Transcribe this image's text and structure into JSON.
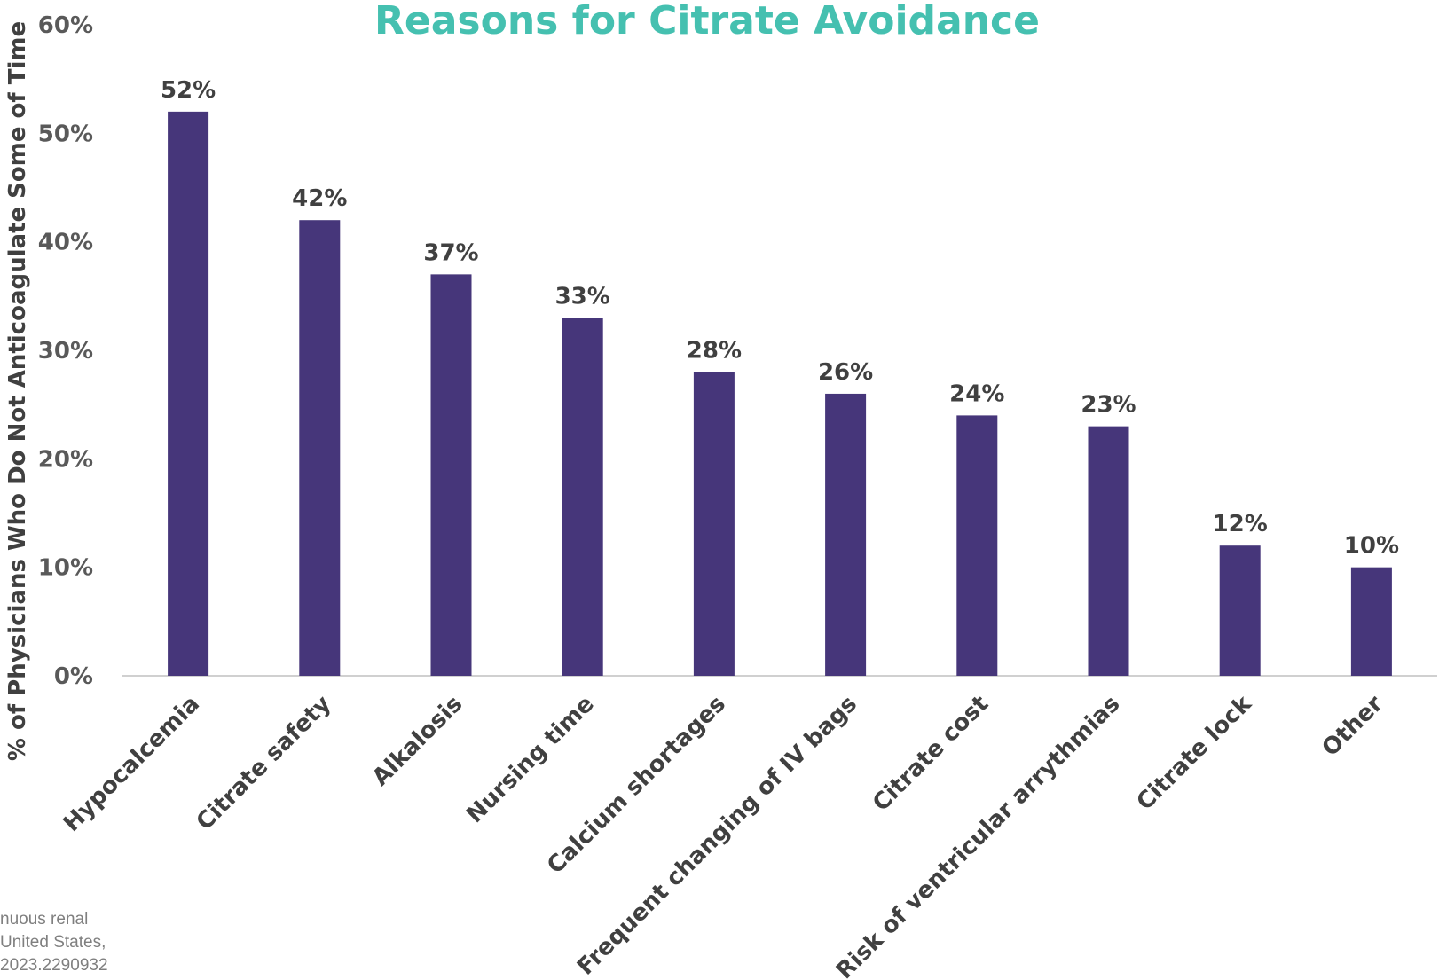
{
  "colors": {
    "bar": "#46367a",
    "title": "#45c0b0",
    "axis_line": "#d0d0d0"
  },
  "chart_data": {
    "type": "bar",
    "title": "Reasons for Citrate Avoidance",
    "ylabel": "% of Physicians Who Do Not Anticoagulate Some of Time",
    "xlabel": "",
    "ylim": [
      0,
      60
    ],
    "yticks": [
      "0%",
      "10%",
      "20%",
      "30%",
      "40%",
      "50%",
      "60%"
    ],
    "grid": false,
    "categories": [
      "Hypocalcemia",
      "Citrate safety",
      "Alkalosis",
      "Nursing time",
      "Calcium shortages",
      "Frequent changing of IV bags",
      "Citrate cost",
      "Risk of ventricular arrythmias",
      "Citrate lock",
      "Other"
    ],
    "values": [
      52,
      42,
      37,
      33,
      28,
      26,
      24,
      23,
      12,
      10
    ],
    "data_labels": [
      "52%",
      "42%",
      "37%",
      "33%",
      "28%",
      "26%",
      "24%",
      "23%",
      "12%",
      "10%"
    ]
  },
  "footnote": {
    "lines": [
      "nuous renal",
      "United States,",
      "2023.2290932"
    ]
  }
}
